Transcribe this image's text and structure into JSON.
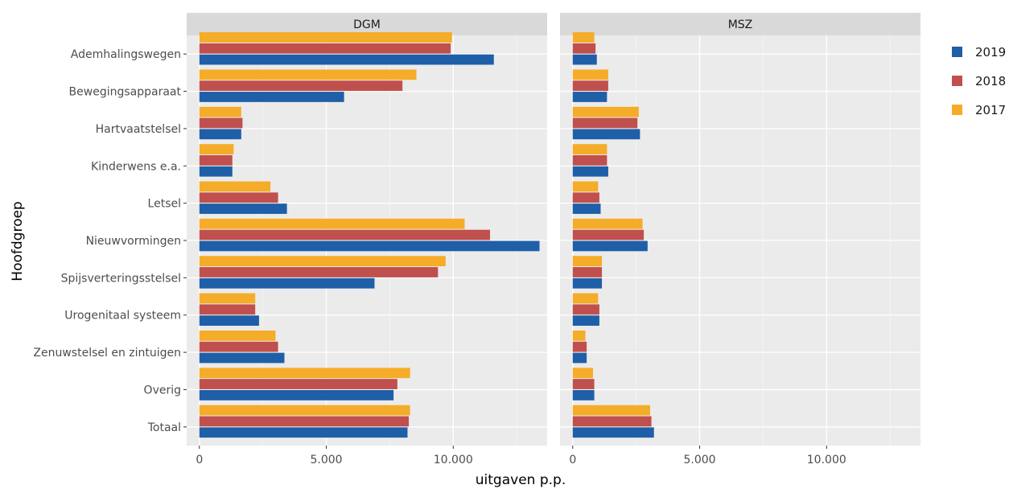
{
  "chart_data": {
    "type": "bar",
    "orientation": "horizontal",
    "xlabel": "uitgaven p.p.",
    "ylabel": "Hoofdgroep",
    "xlim": [
      -500,
      13700
    ],
    "x_ticks": [
      0,
      5000,
      10000
    ],
    "x_tick_labels": [
      "0",
      "5.000",
      "10.000"
    ],
    "grid": true,
    "legend_position": "right",
    "colors": {
      "2019": "#1f5fa8",
      "2018": "#c0504d",
      "2017": "#f5ac29"
    },
    "categories": [
      "Ademhalingswegen",
      "Bewegingsapparaat",
      "Hartvaatstelsel",
      "Kinderwens e.a.",
      "Letsel",
      "Nieuwvormingen",
      "Spijsverteringsstelsel",
      "Urogenitaal systeem",
      "Zenuwstelsel en zintuigen",
      "Overig",
      "Totaal"
    ],
    "legend": [
      "2019",
      "2018",
      "2017"
    ],
    "panels": [
      {
        "name": "DGM",
        "series": [
          {
            "name": "2019",
            "values": [
              11600,
              5700,
              1650,
              1300,
              3450,
              13400,
              6900,
              2350,
              3350,
              7650,
              8200
            ]
          },
          {
            "name": "2018",
            "values": [
              9900,
              8000,
              1700,
              1300,
              3100,
              11450,
              9400,
              2200,
              3100,
              7800,
              8250
            ]
          },
          {
            "name": "2017",
            "values": [
              9950,
              8550,
              1650,
              1350,
              2800,
              10450,
              9700,
              2200,
              3000,
              8300,
              8300
            ]
          }
        ]
      },
      {
        "name": "MSZ",
        "series": [
          {
            "name": "2019",
            "values": [
              950,
              1350,
              2650,
              1400,
              1100,
              2950,
              1150,
              1050,
              550,
              850,
              3200
            ]
          },
          {
            "name": "2018",
            "values": [
              900,
              1400,
              2550,
              1350,
              1050,
              2800,
              1150,
              1050,
              550,
              850,
              3100
            ]
          },
          {
            "name": "2017",
            "values": [
              850,
              1400,
              2600,
              1350,
              1000,
              2750,
              1150,
              1000,
              500,
              800,
              3050
            ]
          }
        ]
      }
    ]
  }
}
